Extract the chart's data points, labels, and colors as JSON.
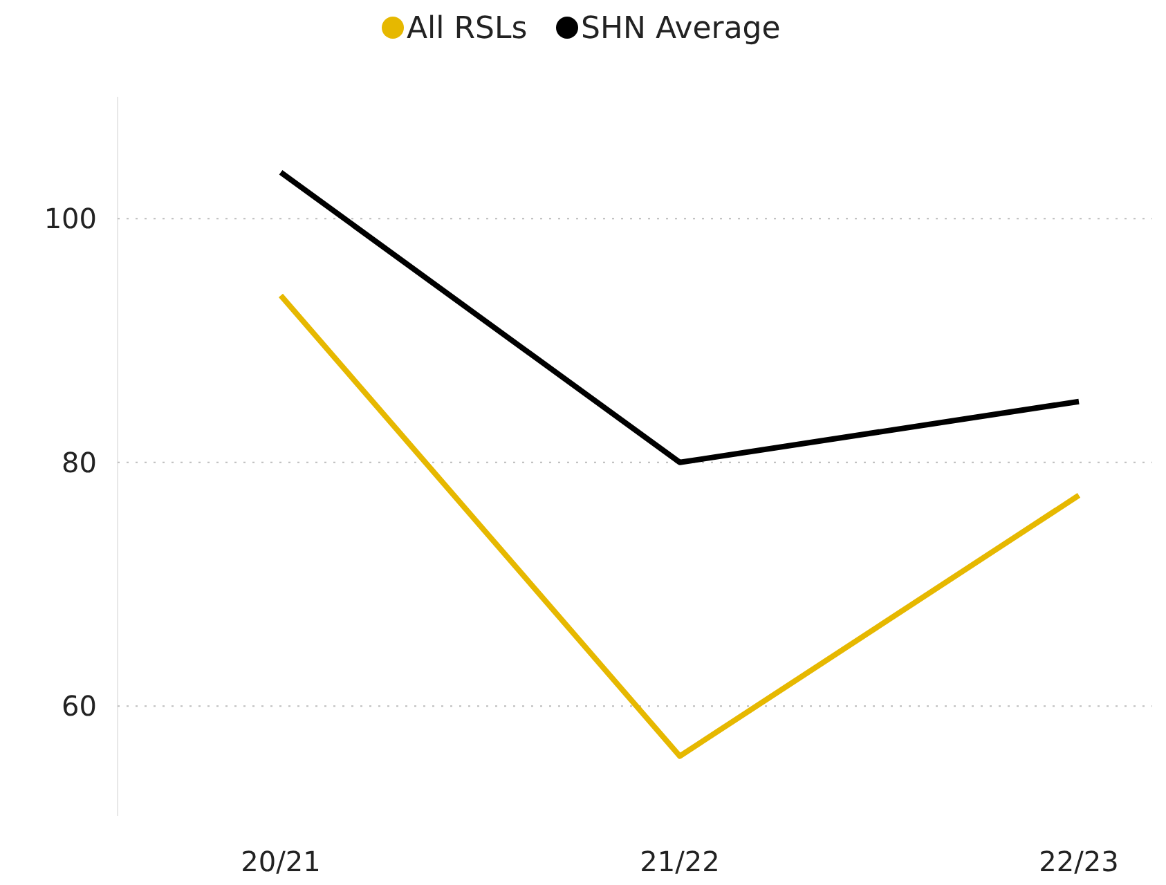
{
  "chart_data": {
    "type": "line",
    "categories": [
      "20/21",
      "21/22",
      "22/23"
    ],
    "series": [
      {
        "name": "All RSLs",
        "color": "#e6b800",
        "values": [
          93.7,
          55.9,
          77.3
        ]
      },
      {
        "name": "SHN Average",
        "color": "#000000",
        "values": [
          103.8,
          80,
          85.0
        ]
      }
    ],
    "ylim": [
      51,
      110
    ],
    "yticks": [
      60,
      80,
      100
    ],
    "grid": "y",
    "legend": "top",
    "marker": "none",
    "line_style": "solid"
  }
}
